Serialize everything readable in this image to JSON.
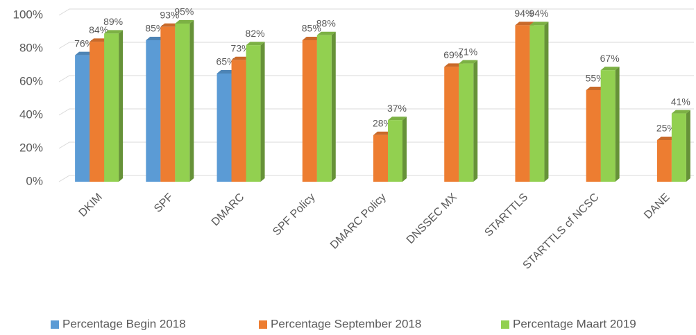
{
  "chart_data": {
    "type": "bar3d",
    "categories": [
      "DKIM",
      "SPF",
      "DMARC",
      "SPF Policy",
      "DMARC Policy",
      "DNSSEC MX",
      "STARTTLS",
      "STARTTLS cf NCSC",
      "DANE"
    ],
    "series": [
      {
        "name": "Percentage Begin 2018",
        "color": "#5b9bd5",
        "values": [
          76,
          85,
          65,
          null,
          null,
          null,
          null,
          null,
          null
        ],
        "value_labels": [
          "76%",
          "85%",
          "65%",
          null,
          null,
          null,
          null,
          null,
          null
        ]
      },
      {
        "name": "Percentage September 2018",
        "color": "#ed7d31",
        "values": [
          84,
          93,
          73,
          85,
          28,
          69,
          94,
          55,
          25
        ],
        "value_labels": [
          "84%",
          "93%",
          "73%",
          "85%",
          "28%",
          "69%",
          "94%",
          "55%",
          "25%"
        ]
      },
      {
        "name": "Percentage Maart 2019",
        "color": "#92d050",
        "values": [
          89,
          95,
          82,
          88,
          37,
          71,
          94,
          67,
          41
        ],
        "value_labels": [
          "89%",
          "95%",
          "82%",
          "88%",
          "37%",
          "71%",
          "94%",
          "67%",
          "41%"
        ]
      }
    ],
    "ylim": [
      0,
      100
    ],
    "yticks": [
      {
        "value": 0,
        "label": "0%"
      },
      {
        "value": 20,
        "label": "20%"
      },
      {
        "value": 40,
        "label": "40%"
      },
      {
        "value": 60,
        "label": "60%"
      },
      {
        "value": 80,
        "label": "80%"
      },
      {
        "value": 100,
        "label": "100%"
      }
    ],
    "grid": true,
    "legend": "bottom"
  }
}
